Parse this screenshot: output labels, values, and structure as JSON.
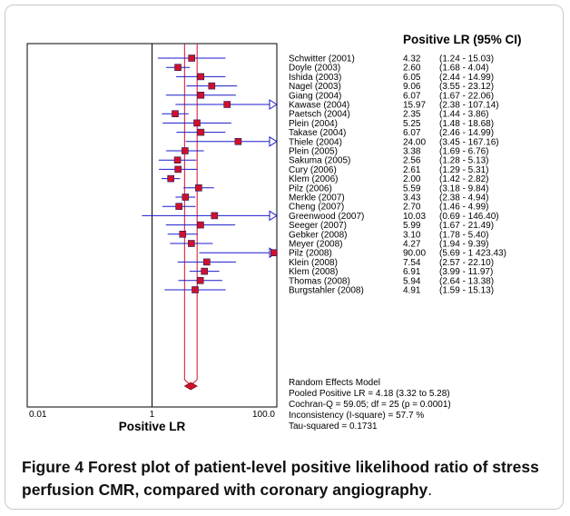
{
  "chart_data": {
    "type": "forest",
    "x_scale": "log",
    "xlim": [
      0.01,
      100.0
    ],
    "x_ticks": [
      "0.01",
      "1",
      "100.0"
    ],
    "xlabel": "Positive LR",
    "header": "Positive LR (95% CI)",
    "reference_line": 1,
    "pooled": {
      "estimate": 4.18,
      "ci": [
        3.32,
        5.28
      ]
    },
    "studies": [
      {
        "name": "Schwitter (2001)",
        "lr": 4.32,
        "lo": 1.24,
        "hi": 15.03,
        "text": "4.32",
        "ci_text": "(1.24 - 15.03)"
      },
      {
        "name": "Doyle (2003)",
        "lr": 2.6,
        "lo": 1.68,
        "hi": 4.04,
        "text": "2.60",
        "ci_text": "(1.68 - 4.04)"
      },
      {
        "name": "Ishida (2003)",
        "lr": 6.05,
        "lo": 2.44,
        "hi": 14.99,
        "text": "6.05",
        "ci_text": "(2.44 - 14.99)"
      },
      {
        "name": "Nagel (2003)",
        "lr": 9.06,
        "lo": 3.55,
        "hi": 23.12,
        "text": "9.06",
        "ci_text": "(3.55 - 23.12)"
      },
      {
        "name": "Giang (2004)",
        "lr": 6.07,
        "lo": 1.67,
        "hi": 22.06,
        "text": "6.07",
        "ci_text": "(1.67 - 22.06)"
      },
      {
        "name": "Kawase (2004)",
        "lr": 15.97,
        "lo": 2.38,
        "hi": 107.14,
        "text": "15.97",
        "ci_text": "(2.38 - 107.14)"
      },
      {
        "name": "Paetsch (2004)",
        "lr": 2.35,
        "lo": 1.44,
        "hi": 3.86,
        "text": "2.35",
        "ci_text": "(1.44 - 3.86)"
      },
      {
        "name": "Plein (2004)",
        "lr": 5.25,
        "lo": 1.48,
        "hi": 18.68,
        "text": "5.25",
        "ci_text": "(1.48 - 18.68)"
      },
      {
        "name": "Takase (2004)",
        "lr": 6.07,
        "lo": 2.46,
        "hi": 14.99,
        "text": "6.07",
        "ci_text": "(2.46 - 14.99)"
      },
      {
        "name": "Thiele (2004)",
        "lr": 24.0,
        "lo": 3.45,
        "hi": 167.16,
        "text": "24.00",
        "ci_text": "(3.45 - 167.16)"
      },
      {
        "name": "Plein (2005)",
        "lr": 3.38,
        "lo": 1.69,
        "hi": 6.76,
        "text": "3.38",
        "ci_text": "(1.69 - 6.76)"
      },
      {
        "name": "Sakuma (2005)",
        "lr": 2.56,
        "lo": 1.28,
        "hi": 5.13,
        "text": "2.56",
        "ci_text": "(1.28 - 5.13)"
      },
      {
        "name": "Cury (2006)",
        "lr": 2.61,
        "lo": 1.29,
        "hi": 5.31,
        "text": "2.61",
        "ci_text": "(1.29 - 5.31)"
      },
      {
        "name": "Klem (2006)",
        "lr": 2.0,
        "lo": 1.42,
        "hi": 2.82,
        "text": "2.00",
        "ci_text": "(1.42 - 2.82)"
      },
      {
        "name": "Pilz (2006)",
        "lr": 5.59,
        "lo": 3.18,
        "hi": 9.84,
        "text": "5.59",
        "ci_text": "(3.18 - 9.84)"
      },
      {
        "name": "Merkle (2007)",
        "lr": 3.43,
        "lo": 2.38,
        "hi": 4.94,
        "text": "3.43",
        "ci_text": "(2.38 - 4.94)"
      },
      {
        "name": "Cheng (2007)",
        "lr": 2.7,
        "lo": 1.46,
        "hi": 4.99,
        "text": "2.70",
        "ci_text": "(1.46 - 4.99)"
      },
      {
        "name": "Greenwood (2007)",
        "lr": 10.03,
        "lo": 0.69,
        "hi": 146.4,
        "text": "10.03",
        "ci_text": "(0.69 - 146.40)"
      },
      {
        "name": "Seeger (2007)",
        "lr": 5.99,
        "lo": 1.67,
        "hi": 21.49,
        "text": "5.99",
        "ci_text": "(1.67 - 21.49)"
      },
      {
        "name": "Gebker (2008)",
        "lr": 3.1,
        "lo": 1.78,
        "hi": 5.4,
        "text": "3.10",
        "ci_text": "(1.78 - 5.40)"
      },
      {
        "name": "Meyer (2008)",
        "lr": 4.27,
        "lo": 1.94,
        "hi": 9.39,
        "text": "4.27",
        "ci_text": "(1.94 - 9.39)"
      },
      {
        "name": "Pilz (2008)",
        "lr": 90.0,
        "lo": 5.69,
        "hi": 1423.43,
        "text": "90.00",
        "ci_text": "(5.69 - 1 423.43)"
      },
      {
        "name": "Klein (2008)",
        "lr": 7.54,
        "lo": 2.57,
        "hi": 22.1,
        "text": "7.54",
        "ci_text": "(2.57 - 22.10)"
      },
      {
        "name": "Klem (2008)",
        "lr": 6.91,
        "lo": 3.99,
        "hi": 11.97,
        "text": "6.91",
        "ci_text": "(3.99 - 11.97)"
      },
      {
        "name": "Thomas (2008)",
        "lr": 5.94,
        "lo": 2.64,
        "hi": 13.38,
        "text": "5.94",
        "ci_text": "(2.64 - 13.38)"
      },
      {
        "name": "Burgstahler (2008)",
        "lr": 4.91,
        "lo": 1.59,
        "hi": 15.13,
        "text": "4.91",
        "ci_text": "(1.59 - 15.13)"
      }
    ],
    "stats_lines": [
      "Random Effects Model",
      "Pooled Positive LR = 4.18 (3.32 to 5.28)",
      "Cochran-Q = 59.05; df = 25 (p = 0.0001)",
      "Inconsistency (I-square) = 57.7 %",
      "Tau-squared = 0.1731"
    ],
    "colors": {
      "marker": "#d0102a",
      "ci_line": "#1a1acc",
      "pooled": "#d0102a",
      "axis": "#000000"
    }
  },
  "caption": {
    "label": "Figure 4",
    "text": "Forest plot of patient-level positive likelihood ratio of stress perfusion CMR, compared with coronary angiography",
    "end": "."
  }
}
